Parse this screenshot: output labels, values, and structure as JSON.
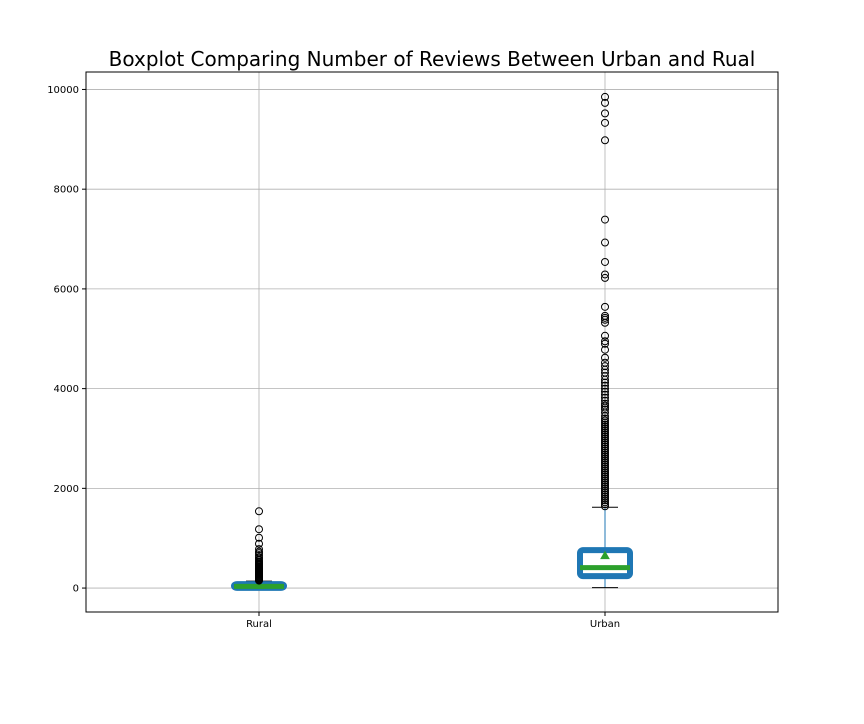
{
  "chart_data": {
    "type": "box",
    "title": "Boxplot Comparing Number of Reviews Between Urban and Rual",
    "xlabel": "",
    "ylabel": "",
    "categories": [
      "Rural",
      "Urban"
    ],
    "ylim": [
      -480,
      10350
    ],
    "y_ticks": [
      0,
      2000,
      4000,
      6000,
      8000,
      10000
    ],
    "grid": true,
    "legend": "none",
    "colors": {
      "box": "#1f77b4",
      "median": "#2ca02c",
      "mean_marker": "#2ca02c",
      "whisker": "#1f77b4",
      "cap": "#000000",
      "outlier": "#000000",
      "grid": "#b0b0b0",
      "frame": "#000000"
    },
    "boxes": [
      {
        "name": "Rural",
        "whisker_low": 0,
        "q1": 5,
        "median": 35,
        "mean": 55,
        "q3": 80,
        "whisker_high": 140,
        "outliers": [
          150,
          165,
          180,
          195,
          210,
          225,
          240,
          255,
          270,
          285,
          300,
          315,
          330,
          345,
          360,
          375,
          390,
          410,
          430,
          450,
          470,
          490,
          510,
          530,
          560,
          590,
          620,
          660,
          700,
          730,
          780,
          890,
          1010,
          1180,
          1540
        ]
      },
      {
        "name": "Urban",
        "whisker_low": 10,
        "q1": 240,
        "median": 410,
        "mean": 650,
        "q3": 760,
        "whisker_high": 1620,
        "outliers": [
          1640,
          1680,
          1720,
          1760,
          1800,
          1840,
          1880,
          1920,
          1960,
          2000,
          2040,
          2080,
          2120,
          2160,
          2200,
          2240,
          2280,
          2320,
          2360,
          2400,
          2440,
          2480,
          2520,
          2560,
          2600,
          2640,
          2680,
          2720,
          2760,
          2800,
          2840,
          2880,
          2920,
          2960,
          3000,
          3040,
          3080,
          3120,
          3160,
          3200,
          3240,
          3280,
          3320,
          3360,
          3400,
          3450,
          3520,
          3580,
          3620,
          3660,
          3700,
          3760,
          3820,
          3880,
          3940,
          4000,
          4060,
          4120,
          4180,
          4250,
          4320,
          4380,
          4450,
          4520,
          4620,
          4780,
          4900,
          4950,
          5060,
          5320,
          5380,
          5420,
          5460,
          5640,
          6220,
          6290,
          6540,
          6930,
          7390,
          8980,
          9330,
          9520,
          9730,
          9850
        ]
      }
    ]
  }
}
